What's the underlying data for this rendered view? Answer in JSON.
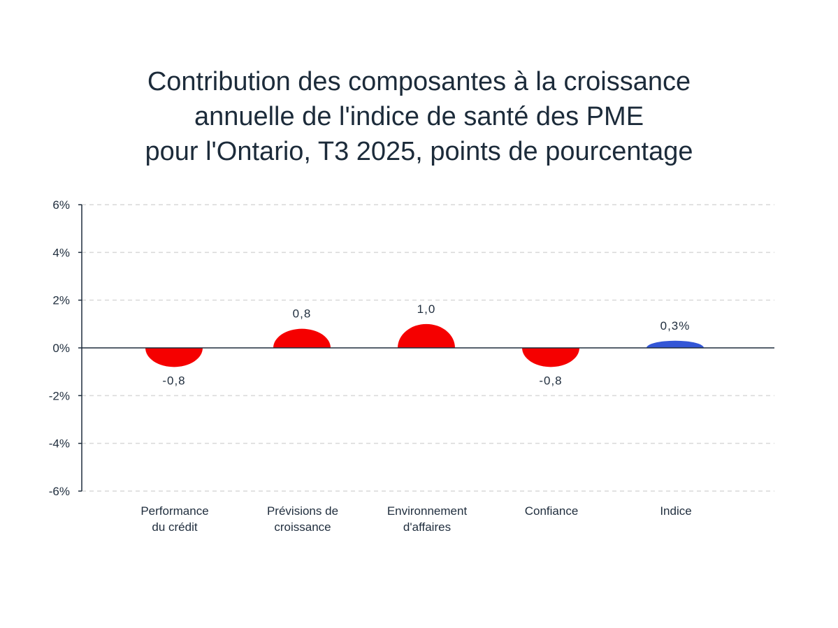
{
  "chart_data": {
    "type": "bar",
    "title": [
      "Contribution des composantes à la croissance",
      "annuelle de l'indice de santé des PME",
      "pour l'Ontario, T3 2025, points de pourcentage"
    ],
    "categories": [
      [
        "Performance",
        "du crédit"
      ],
      [
        "Prévisions de",
        "croissance"
      ],
      [
        "Environnement",
        "d'affaires"
      ],
      [
        "Confiance"
      ],
      [
        "Indice"
      ]
    ],
    "values": [
      -0.8,
      0.8,
      1.0,
      -0.8,
      0.3
    ],
    "data_labels": [
      "-0,8",
      "0,8",
      "1,0",
      "-0,8",
      "0,3%"
    ],
    "colors": [
      "#f50000",
      "#f50000",
      "#f50000",
      "#f50000",
      "#3356d6"
    ],
    "yticks": [
      6,
      4,
      2,
      0,
      -2,
      -4,
      -6
    ],
    "ytick_labels": [
      "6%",
      "4%",
      "2%",
      "0%",
      "-2%",
      "-4%",
      "-6%"
    ],
    "ylim": [
      -6,
      6
    ],
    "grid": true,
    "bar_shape": "rounded-half-disc",
    "axis_color": "#1f2d3d",
    "grid_color": "#d9d9d9"
  }
}
